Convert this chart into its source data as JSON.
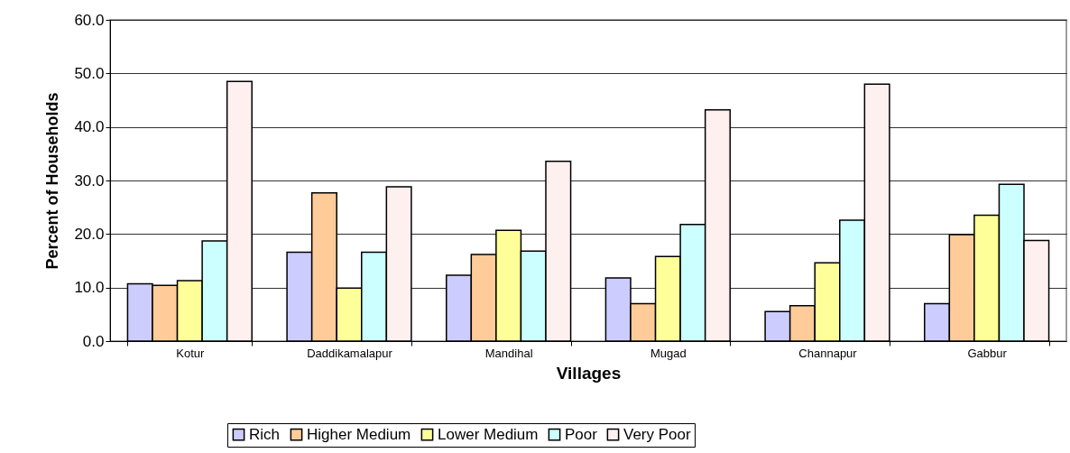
{
  "chart_data": {
    "type": "bar",
    "xlabel": "Villages",
    "ylabel": "Percent of Households",
    "categories": [
      "Kotur",
      "Daddikamalapur",
      "Mandihal",
      "Mugad",
      "Channapur",
      "Gabbur"
    ],
    "series": [
      {
        "name": "Rich",
        "color": "#ccccff",
        "values": [
          10.7,
          16.6,
          12.3,
          11.8,
          5.5,
          7.0
        ]
      },
      {
        "name": "Higher Medium",
        "color": "#ffcc99",
        "values": [
          10.4,
          27.7,
          16.2,
          7.0,
          6.6,
          19.9
        ]
      },
      {
        "name": "Lower Medium",
        "color": "#ffff99",
        "values": [
          11.3,
          9.9,
          20.7,
          15.8,
          14.6,
          23.5
        ]
      },
      {
        "name": "Poor",
        "color": "#ccffff",
        "values": [
          18.7,
          16.6,
          16.8,
          21.8,
          22.6,
          29.3
        ]
      },
      {
        "name": "Very Poor",
        "color": "#fff0f0",
        "values": [
          48.5,
          28.8,
          33.6,
          43.2,
          48.0,
          18.8
        ]
      }
    ],
    "ylim": [
      0,
      60
    ],
    "yticks": [
      {
        "value": 0,
        "label": "0.0"
      },
      {
        "value": 10,
        "label": "10.0"
      },
      {
        "value": 20,
        "label": "20.0"
      },
      {
        "value": 30,
        "label": "30.0"
      },
      {
        "value": 40,
        "label": "40.0"
      },
      {
        "value": 50,
        "label": "50.0"
      },
      {
        "value": 60,
        "label": "60.0"
      }
    ],
    "grid": "y",
    "legend": "bottom"
  }
}
